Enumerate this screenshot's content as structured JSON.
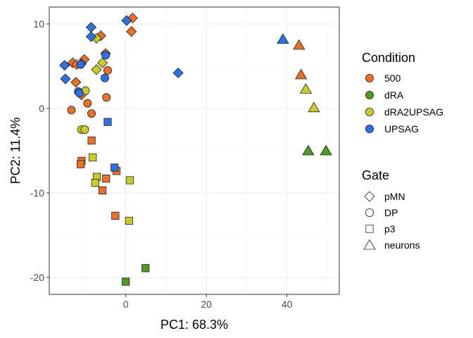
{
  "chart_data": {
    "type": "scatter",
    "title": "",
    "xlabel": "PC1: 68.3%",
    "ylabel": "PC2: 11.4%",
    "xlim": [
      -19,
      53
    ],
    "ylim": [
      -22,
      12
    ],
    "x_ticks": [
      0,
      20,
      40
    ],
    "y_ticks": [
      10,
      0,
      -10,
      -20
    ],
    "x_tick_labels": [
      "0",
      "20",
      "40"
    ],
    "y_tick_labels": [
      "10",
      "0",
      "-10",
      "-20"
    ],
    "grid": true,
    "legend_position": "right",
    "color_legend": {
      "title": "Condition",
      "entries": [
        {
          "label": "500",
          "color": "#E8712A"
        },
        {
          "label": "dRA",
          "color": "#4F9A23"
        },
        {
          "label": "dRA2UPSAG",
          "color": "#C9CB2A"
        },
        {
          "label": "UPSAG",
          "color": "#2F6FE0"
        }
      ]
    },
    "shape_legend": {
      "title": "Gate",
      "entries": [
        {
          "label": "pMN",
          "shape": "diamond"
        },
        {
          "label": "DP",
          "shape": "circle"
        },
        {
          "label": "p3",
          "shape": "square"
        },
        {
          "label": "neurons",
          "shape": "triangle"
        }
      ]
    },
    "points": [
      {
        "x": 1.7,
        "y": 10.7,
        "condition": "500",
        "gate": "pMN"
      },
      {
        "x": 1.4,
        "y": 9.1,
        "condition": "500",
        "gate": "pMN"
      },
      {
        "x": -6.2,
        "y": 8.6,
        "condition": "500",
        "gate": "pMN"
      },
      {
        "x": -5.0,
        "y": 6.5,
        "condition": "500",
        "gate": "pMN"
      },
      {
        "x": -13.2,
        "y": 5.4,
        "condition": "500",
        "gate": "pMN"
      },
      {
        "x": -12.2,
        "y": 5.2,
        "condition": "500",
        "gate": "pMN"
      },
      {
        "x": -10.3,
        "y": 5.8,
        "condition": "500",
        "gate": "pMN"
      },
      {
        "x": -12.4,
        "y": 3.1,
        "condition": "500",
        "gate": "pMN"
      },
      {
        "x": -11.0,
        "y": 1.6,
        "condition": "500",
        "gate": "pMN"
      },
      {
        "x": -7.3,
        "y": 8.3,
        "condition": "dRA2UPSAG",
        "gate": "pMN"
      },
      {
        "x": -5.8,
        "y": 5.4,
        "condition": "dRA2UPSAG",
        "gate": "pMN"
      },
      {
        "x": -7.3,
        "y": 4.6,
        "condition": "dRA2UPSAG",
        "gate": "pMN"
      },
      {
        "x": -8.6,
        "y": 9.6,
        "condition": "UPSAG",
        "gate": "pMN"
      },
      {
        "x": -8.6,
        "y": 8.5,
        "condition": "UPSAG",
        "gate": "pMN"
      },
      {
        "x": 0.2,
        "y": 10.4,
        "condition": "UPSAG",
        "gate": "pMN"
      },
      {
        "x": -15.2,
        "y": 5.1,
        "condition": "UPSAG",
        "gate": "pMN"
      },
      {
        "x": -15.0,
        "y": 3.5,
        "condition": "UPSAG",
        "gate": "pMN"
      },
      {
        "x": 13.0,
        "y": 4.2,
        "condition": "UPSAG",
        "gate": "pMN"
      },
      {
        "x": -11.0,
        "y": 5.3,
        "condition": "UPSAG",
        "gate": "pMN"
      },
      {
        "x": -4.5,
        "y": 4.5,
        "condition": "500",
        "gate": "DP"
      },
      {
        "x": -4.8,
        "y": 1.3,
        "condition": "500",
        "gate": "DP"
      },
      {
        "x": -13.5,
        "y": -0.2,
        "condition": "500",
        "gate": "DP"
      },
      {
        "x": -9.5,
        "y": 0.6,
        "condition": "500",
        "gate": "DP"
      },
      {
        "x": -8.5,
        "y": -0.6,
        "condition": "500",
        "gate": "DP"
      },
      {
        "x": -10.0,
        "y": 2.1,
        "condition": "dRA2UPSAG",
        "gate": "DP"
      },
      {
        "x": -11.0,
        "y": -2.5,
        "condition": "dRA2UPSAG",
        "gate": "DP"
      },
      {
        "x": -10.2,
        "y": -2.5,
        "condition": "dRA2UPSAG",
        "gate": "DP"
      },
      {
        "x": -11.2,
        "y": 5.2,
        "condition": "UPSAG",
        "gate": "DP"
      },
      {
        "x": -5.0,
        "y": 6.3,
        "condition": "UPSAG",
        "gate": "DP"
      },
      {
        "x": -5.2,
        "y": 3.6,
        "condition": "UPSAG",
        "gate": "DP"
      },
      {
        "x": -11.8,
        "y": 2.0,
        "condition": "UPSAG",
        "gate": "DP"
      },
      {
        "x": -11.5,
        "y": 1.8,
        "condition": "UPSAG",
        "gate": "DP"
      },
      {
        "x": -8.5,
        "y": -3.8,
        "condition": "500",
        "gate": "p3"
      },
      {
        "x": -11.0,
        "y": -6.2,
        "condition": "500",
        "gate": "p3"
      },
      {
        "x": -11.2,
        "y": -6.6,
        "condition": "500",
        "gate": "p3"
      },
      {
        "x": -4.9,
        "y": -8.3,
        "condition": "500",
        "gate": "p3"
      },
      {
        "x": -2.3,
        "y": -7.4,
        "condition": "500",
        "gate": "p3"
      },
      {
        "x": -5.8,
        "y": -9.7,
        "condition": "500",
        "gate": "p3"
      },
      {
        "x": -2.6,
        "y": -12.7,
        "condition": "500",
        "gate": "p3"
      },
      {
        "x": -8.2,
        "y": -5.8,
        "condition": "dRA2UPSAG",
        "gate": "p3"
      },
      {
        "x": -7.2,
        "y": -8.1,
        "condition": "dRA2UPSAG",
        "gate": "p3"
      },
      {
        "x": -7.6,
        "y": -8.8,
        "condition": "dRA2UPSAG",
        "gate": "p3"
      },
      {
        "x": 1.0,
        "y": -8.5,
        "condition": "dRA2UPSAG",
        "gate": "p3"
      },
      {
        "x": 0.8,
        "y": -13.3,
        "condition": "dRA2UPSAG",
        "gate": "p3"
      },
      {
        "x": -4.5,
        "y": -1.6,
        "condition": "UPSAG",
        "gate": "p3"
      },
      {
        "x": -2.8,
        "y": -7.0,
        "condition": "UPSAG",
        "gate": "p3"
      },
      {
        "x": 4.9,
        "y": -18.9,
        "condition": "dRA",
        "gate": "p3"
      },
      {
        "x": 0.0,
        "y": -20.5,
        "condition": "dRA",
        "gate": "p3"
      },
      {
        "x": 39.0,
        "y": 8.2,
        "condition": "UPSAG",
        "gate": "neurons"
      },
      {
        "x": 43.0,
        "y": 7.5,
        "condition": "500",
        "gate": "neurons"
      },
      {
        "x": 43.5,
        "y": 4.0,
        "condition": "500",
        "gate": "neurons"
      },
      {
        "x": 44.7,
        "y": 2.3,
        "condition": "dRA2UPSAG",
        "gate": "neurons"
      },
      {
        "x": 46.7,
        "y": 0.1,
        "condition": "dRA2UPSAG",
        "gate": "neurons"
      },
      {
        "x": 45.3,
        "y": -5.0,
        "condition": "dRA",
        "gate": "neurons"
      },
      {
        "x": 49.7,
        "y": -5.0,
        "condition": "dRA",
        "gate": "neurons"
      }
    ]
  }
}
